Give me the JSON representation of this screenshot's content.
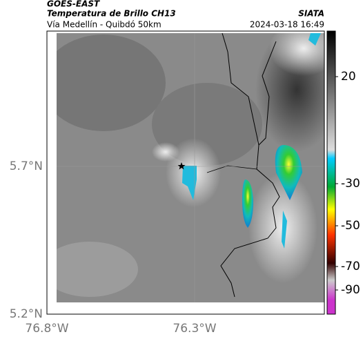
{
  "header": {
    "title": "GOES-EAST",
    "subtitle": "Temperatura de Brillo CH13",
    "route": "Vía Medellín - Quibdó 50km",
    "source": "SIATA",
    "timestamp": "2024-03-18 16:49"
  },
  "map": {
    "lat_labels": [
      "5.7°N",
      "5.2°N"
    ],
    "lon_labels": [
      "76.8°W",
      "76.3°W"
    ]
  },
  "colorbar": {
    "ticks": [
      20,
      -30,
      -50,
      -70,
      -90
    ]
  }
}
